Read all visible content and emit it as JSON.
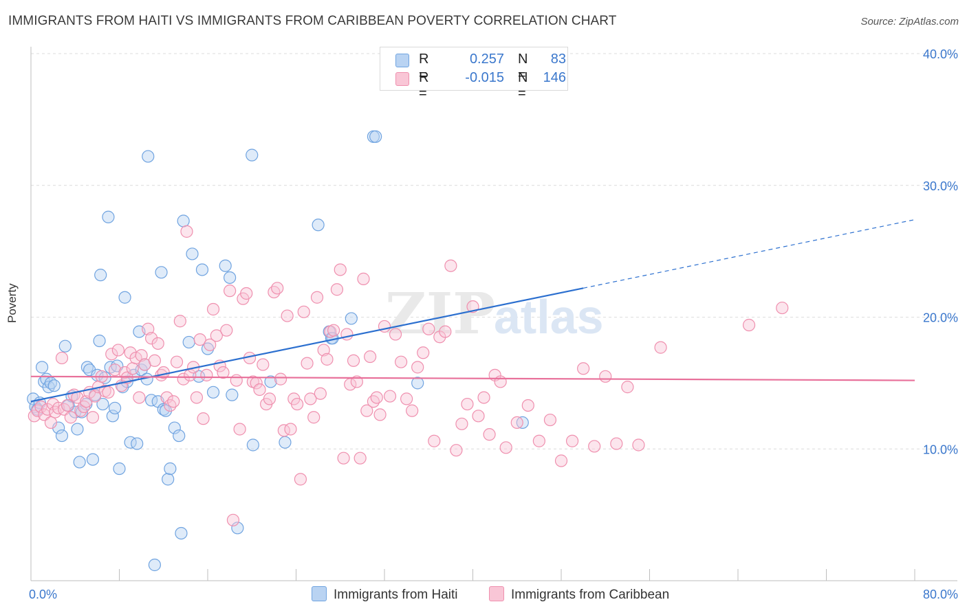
{
  "header": {
    "title": "IMMIGRANTS FROM HAITI VS IMMIGRANTS FROM CARIBBEAN POVERTY CORRELATION CHART",
    "source": "Source: ZipAtlas.com"
  },
  "watermark": {
    "part1": "ZIP",
    "part2": "atlas"
  },
  "legend": {
    "rows": [
      {
        "r_label": "R =",
        "r_value": "0.257",
        "n_label": "N =",
        "n_value": "83",
        "color": "#a8c8f0"
      },
      {
        "r_label": "R =",
        "r_value": "-0.015",
        "n_label": "N =",
        "n_value": "146",
        "color": "#f7b9cc"
      }
    ]
  },
  "bottom_legend": [
    {
      "label": "Immigrants from Haiti",
      "color": "#a8c8f0"
    },
    {
      "label": "Immigrants from Caribbean",
      "color": "#f7b9cc"
    }
  ],
  "chart_data": {
    "type": "scatter",
    "title": "IMMIGRANTS FROM HAITI VS IMMIGRANTS FROM CARIBBEAN POVERTY CORRELATION CHART",
    "xlabel": "",
    "ylabel": "Poverty",
    "xlim": [
      0,
      80
    ],
    "ylim": [
      0,
      40
    ],
    "x_tick_labels": [
      "0.0%",
      "80.0%"
    ],
    "y_ticks": [
      10,
      20,
      30,
      40
    ],
    "y_tick_labels": [
      "10.0%",
      "20.0%",
      "30.0%",
      "40.0%"
    ],
    "grid": true,
    "legend_position": "top-center",
    "series": [
      {
        "name": "Immigrants from Haiti",
        "color": "#6fa3e0",
        "fill": "#b9d3f2",
        "line_color": "#2b6fcf",
        "trend": {
          "x0": 0,
          "y0": 13.6,
          "x1": 50,
          "y1": 22.2,
          "dashed_to_x": 80,
          "dashed_to_y": 27.4
        },
        "points": [
          [
            0.2,
            13.8
          ],
          [
            0.4,
            13.2
          ],
          [
            0.6,
            13.0
          ],
          [
            0.8,
            13.5
          ],
          [
            1.0,
            16.2
          ],
          [
            1.2,
            15.1
          ],
          [
            1.4,
            15.3
          ],
          [
            1.6,
            14.7
          ],
          [
            1.8,
            15.0
          ],
          [
            2.1,
            14.8
          ],
          [
            2.5,
            11.6
          ],
          [
            2.8,
            11.0
          ],
          [
            3.1,
            17.8
          ],
          [
            3.4,
            13.3
          ],
          [
            3.7,
            14.0
          ],
          [
            4.0,
            12.8
          ],
          [
            4.2,
            11.5
          ],
          [
            4.4,
            9.0
          ],
          [
            4.6,
            12.8
          ],
          [
            5.0,
            13.4
          ],
          [
            5.1,
            16.2
          ],
          [
            5.3,
            16.0
          ],
          [
            5.6,
            9.2
          ],
          [
            5.8,
            14.1
          ],
          [
            6.0,
            15.6
          ],
          [
            6.2,
            18.2
          ],
          [
            6.3,
            23.2
          ],
          [
            6.5,
            13.4
          ],
          [
            6.7,
            15.4
          ],
          [
            7.0,
            27.6
          ],
          [
            7.2,
            16.2
          ],
          [
            7.4,
            12.5
          ],
          [
            7.6,
            13.1
          ],
          [
            7.8,
            16.3
          ],
          [
            8.0,
            8.5
          ],
          [
            8.3,
            14.7
          ],
          [
            8.5,
            21.5
          ],
          [
            8.7,
            15.1
          ],
          [
            9.0,
            10.5
          ],
          [
            9.3,
            15.6
          ],
          [
            9.6,
            10.4
          ],
          [
            9.8,
            18.9
          ],
          [
            10.0,
            16.0
          ],
          [
            10.3,
            16.4
          ],
          [
            10.5,
            15.3
          ],
          [
            10.6,
            32.2
          ],
          [
            10.9,
            13.7
          ],
          [
            11.2,
            1.2
          ],
          [
            11.5,
            13.6
          ],
          [
            11.8,
            23.4
          ],
          [
            12.0,
            13.0
          ],
          [
            12.2,
            12.9
          ],
          [
            12.4,
            7.7
          ],
          [
            12.6,
            8.5
          ],
          [
            13.0,
            11.6
          ],
          [
            13.4,
            11.0
          ],
          [
            13.6,
            3.6
          ],
          [
            13.8,
            27.3
          ],
          [
            14.3,
            18.1
          ],
          [
            14.6,
            24.8
          ],
          [
            15.2,
            15.5
          ],
          [
            15.5,
            23.6
          ],
          [
            16.0,
            17.6
          ],
          [
            16.5,
            14.3
          ],
          [
            17.6,
            23.9
          ],
          [
            18.0,
            23.0
          ],
          [
            18.2,
            14.1
          ],
          [
            18.7,
            4.0
          ],
          [
            20.0,
            32.3
          ],
          [
            20.1,
            10.3
          ],
          [
            21.7,
            15.1
          ],
          [
            23.0,
            10.5
          ],
          [
            26.0,
            27.0
          ],
          [
            27.0,
            18.9
          ],
          [
            27.2,
            18.4
          ],
          [
            27.3,
            18.4
          ],
          [
            29.0,
            19.9
          ],
          [
            31.0,
            33.7
          ],
          [
            31.2,
            33.7
          ],
          [
            35.0,
            15.0
          ],
          [
            44.5,
            12.0
          ]
        ]
      },
      {
        "name": "Immigrants from Caribbean",
        "color": "#ef8fae",
        "fill": "#f9c6d6",
        "line_color": "#e8709a",
        "trend": {
          "x0": 0,
          "y0": 15.5,
          "x1": 80,
          "y1": 15.2
        },
        "points": [
          [
            0.3,
            12.5
          ],
          [
            0.6,
            12.9
          ],
          [
            0.9,
            13.2
          ],
          [
            1.2,
            12.6
          ],
          [
            1.5,
            13.0
          ],
          [
            1.8,
            12.0
          ],
          [
            2.0,
            13.4
          ],
          [
            2.2,
            12.8
          ],
          [
            2.5,
            13.1
          ],
          [
            2.8,
            16.9
          ],
          [
            3.0,
            13.0
          ],
          [
            3.3,
            13.3
          ],
          [
            3.6,
            12.4
          ],
          [
            3.9,
            14.1
          ],
          [
            4.2,
            13.9
          ],
          [
            4.5,
            12.9
          ],
          [
            4.8,
            13.2
          ],
          [
            5.0,
            13.6
          ],
          [
            5.3,
            14.3
          ],
          [
            5.6,
            12.4
          ],
          [
            5.8,
            14.0
          ],
          [
            6.1,
            14.7
          ],
          [
            6.4,
            15.5
          ],
          [
            6.7,
            14.4
          ],
          [
            7.0,
            14.3
          ],
          [
            7.3,
            17.2
          ],
          [
            7.6,
            16.0
          ],
          [
            7.9,
            17.5
          ],
          [
            8.2,
            14.8
          ],
          [
            8.5,
            15.8
          ],
          [
            8.7,
            15.4
          ],
          [
            9.0,
            17.3
          ],
          [
            9.2,
            16.1
          ],
          [
            9.5,
            16.9
          ],
          [
            9.8,
            13.9
          ],
          [
            10.0,
            17.1
          ],
          [
            10.3,
            16.4
          ],
          [
            10.6,
            19.1
          ],
          [
            10.9,
            18.4
          ],
          [
            11.2,
            16.7
          ],
          [
            11.5,
            18.0
          ],
          [
            11.8,
            15.6
          ],
          [
            12.0,
            15.8
          ],
          [
            12.3,
            13.9
          ],
          [
            12.6,
            13.3
          ],
          [
            12.9,
            13.6
          ],
          [
            13.2,
            16.6
          ],
          [
            13.5,
            19.7
          ],
          [
            13.8,
            15.3
          ],
          [
            14.1,
            26.5
          ],
          [
            14.4,
            15.6
          ],
          [
            14.7,
            16.2
          ],
          [
            15.0,
            13.9
          ],
          [
            15.3,
            18.3
          ],
          [
            15.6,
            12.3
          ],
          [
            15.9,
            15.6
          ],
          [
            16.2,
            17.9
          ],
          [
            16.5,
            20.6
          ],
          [
            16.8,
            18.6
          ],
          [
            17.1,
            16.3
          ],
          [
            17.4,
            15.8
          ],
          [
            17.7,
            19.0
          ],
          [
            18.0,
            22.0
          ],
          [
            18.3,
            4.6
          ],
          [
            18.6,
            15.2
          ],
          [
            18.9,
            11.5
          ],
          [
            19.2,
            21.4
          ],
          [
            19.5,
            21.8
          ],
          [
            19.8,
            16.9
          ],
          [
            20.1,
            15.1
          ],
          [
            20.4,
            15.0
          ],
          [
            20.7,
            14.5
          ],
          [
            21.0,
            16.4
          ],
          [
            21.3,
            13.4
          ],
          [
            21.6,
            13.8
          ],
          [
            22.0,
            21.9
          ],
          [
            22.3,
            22.2
          ],
          [
            22.6,
            15.3
          ],
          [
            22.9,
            11.4
          ],
          [
            23.2,
            20.1
          ],
          [
            23.5,
            11.5
          ],
          [
            23.8,
            13.8
          ],
          [
            24.1,
            13.4
          ],
          [
            24.4,
            7.7
          ],
          [
            24.7,
            20.4
          ],
          [
            25.0,
            16.5
          ],
          [
            25.3,
            13.8
          ],
          [
            25.6,
            12.4
          ],
          [
            25.9,
            21.5
          ],
          [
            26.2,
            14.2
          ],
          [
            26.5,
            17.5
          ],
          [
            26.8,
            16.8
          ],
          [
            27.1,
            18.9
          ],
          [
            27.4,
            19.0
          ],
          [
            27.7,
            22.1
          ],
          [
            28.0,
            23.6
          ],
          [
            28.3,
            9.3
          ],
          [
            28.6,
            18.7
          ],
          [
            28.9,
            14.9
          ],
          [
            29.2,
            16.7
          ],
          [
            29.5,
            15.1
          ],
          [
            29.8,
            9.3
          ],
          [
            30.1,
            22.9
          ],
          [
            30.4,
            12.9
          ],
          [
            30.7,
            17.0
          ],
          [
            31.0,
            13.6
          ],
          [
            31.3,
            13.9
          ],
          [
            31.6,
            12.6
          ],
          [
            32.0,
            19.3
          ],
          [
            32.5,
            14.0
          ],
          [
            33.0,
            18.7
          ],
          [
            33.5,
            16.6
          ],
          [
            34.0,
            13.8
          ],
          [
            34.5,
            12.9
          ],
          [
            35.0,
            16.2
          ],
          [
            35.5,
            17.3
          ],
          [
            36.0,
            19.1
          ],
          [
            36.5,
            10.6
          ],
          [
            37.0,
            18.5
          ],
          [
            37.5,
            18.9
          ],
          [
            38.0,
            23.9
          ],
          [
            38.5,
            9.9
          ],
          [
            39.0,
            11.9
          ],
          [
            39.5,
            13.4
          ],
          [
            40.0,
            20.8
          ],
          [
            40.5,
            12.5
          ],
          [
            41.0,
            13.9
          ],
          [
            41.5,
            11.1
          ],
          [
            42.0,
            15.6
          ],
          [
            42.5,
            15.1
          ],
          [
            43.0,
            10.1
          ],
          [
            44.0,
            12.0
          ],
          [
            45.0,
            13.3
          ],
          [
            46.0,
            10.6
          ],
          [
            47.0,
            12.2
          ],
          [
            48.0,
            9.1
          ],
          [
            49.0,
            10.6
          ],
          [
            50.0,
            16.1
          ],
          [
            51.0,
            10.2
          ],
          [
            52.0,
            15.5
          ],
          [
            53.0,
            10.4
          ],
          [
            54.0,
            14.7
          ],
          [
            55.0,
            10.3
          ],
          [
            57.0,
            17.7
          ],
          [
            65.0,
            19.4
          ],
          [
            68.0,
            20.7
          ]
        ]
      }
    ]
  }
}
